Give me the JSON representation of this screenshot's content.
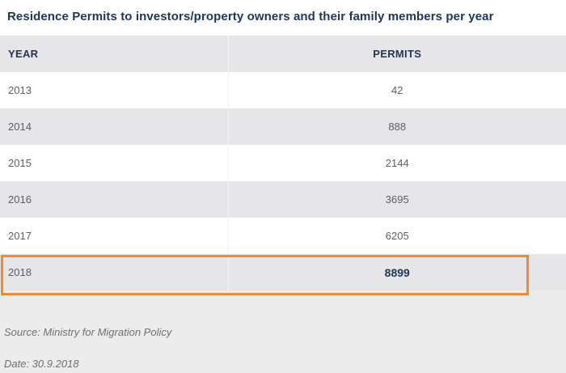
{
  "title": "Residence Permits to investors/property owners and their family members per year",
  "table": {
    "headers": {
      "year": "YEAR",
      "permits": "PERMITS"
    },
    "rows": [
      {
        "year": "2013",
        "permits": "42"
      },
      {
        "year": "2014",
        "permits": "888"
      },
      {
        "year": "2015",
        "permits": "2144"
      },
      {
        "year": "2016",
        "permits": "3695"
      },
      {
        "year": "2017",
        "permits": "6205"
      },
      {
        "year": "2018",
        "permits": "8899"
      }
    ],
    "highlighted_year": "2018"
  },
  "highlight_color": "#f08a2e",
  "title_color": "#1f3553",
  "source": "Source: Ministry for Migration Policy",
  "date": "Date: 30.9.2018"
}
